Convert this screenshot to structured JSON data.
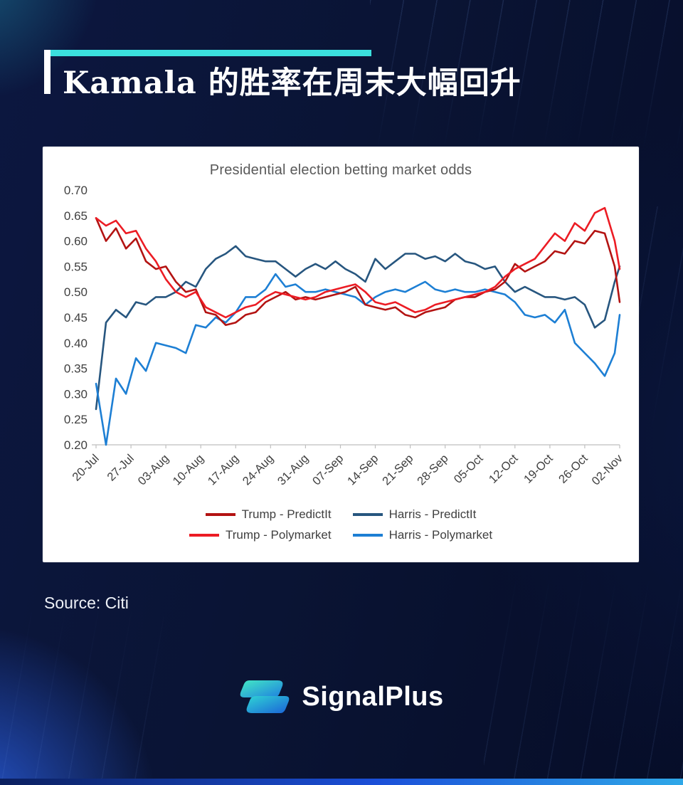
{
  "page": {
    "title": "Kamala 的胜率在周末大幅回升",
    "source": "Source: Citi",
    "brand": "SignalPlus",
    "accent_cyan": "#3BE0DE",
    "background_navy": "#0A1434"
  },
  "chart_data": {
    "type": "line",
    "title": "Presidential election betting market odds",
    "xlabel": "",
    "ylabel": "",
    "ylim": [
      0.2,
      0.7
    ],
    "xlim_days": [
      0,
      105
    ],
    "grid": false,
    "legend_position": "bottom",
    "y_ticks": [
      "0.70",
      "0.65",
      "0.60",
      "0.55",
      "0.50",
      "0.45",
      "0.40",
      "0.35",
      "0.30",
      "0.25",
      "0.20"
    ],
    "y_tick_values": [
      0.7,
      0.65,
      0.6,
      0.55,
      0.5,
      0.45,
      0.4,
      0.35,
      0.3,
      0.25,
      0.2
    ],
    "x_tick_days": [
      0,
      7,
      14,
      21,
      28,
      35,
      42,
      49,
      56,
      63,
      70,
      77,
      84,
      91,
      98,
      105
    ],
    "x_tick_labels": [
      "20-Jul",
      "27-Jul",
      "03-Aug",
      "10-Aug",
      "17-Aug",
      "24-Aug",
      "31-Aug",
      "07-Sep",
      "14-Sep",
      "21-Sep",
      "28-Sep",
      "05-Oct",
      "12-Oct",
      "19-Oct",
      "26-Oct",
      "02-Nov"
    ],
    "x_days": [
      0,
      2,
      4,
      6,
      8,
      10,
      12,
      14,
      16,
      18,
      20,
      22,
      24,
      26,
      28,
      30,
      32,
      34,
      36,
      38,
      40,
      42,
      44,
      46,
      48,
      50,
      52,
      54,
      56,
      58,
      60,
      62,
      64,
      66,
      68,
      70,
      72,
      74,
      76,
      78,
      80,
      82,
      84,
      86,
      88,
      90,
      92,
      94,
      96,
      98,
      100,
      102,
      104,
      105
    ],
    "draw_order": [
      1,
      3,
      0,
      2
    ],
    "legend_rows": [
      [
        0,
        1
      ],
      [
        2,
        3
      ]
    ],
    "series": [
      {
        "name": "Trump - PredictIt",
        "color": "#B31312",
        "values": [
          0.645,
          0.6,
          0.625,
          0.585,
          0.605,
          0.56,
          0.545,
          0.55,
          0.52,
          0.5,
          0.505,
          0.46,
          0.455,
          0.435,
          0.44,
          0.455,
          0.46,
          0.48,
          0.49,
          0.5,
          0.485,
          0.49,
          0.485,
          0.49,
          0.495,
          0.5,
          0.51,
          0.475,
          0.47,
          0.465,
          0.47,
          0.455,
          0.45,
          0.46,
          0.465,
          0.47,
          0.485,
          0.49,
          0.49,
          0.5,
          0.505,
          0.52,
          0.555,
          0.54,
          0.55,
          0.56,
          0.58,
          0.575,
          0.6,
          0.595,
          0.62,
          0.615,
          0.55,
          0.48
        ]
      },
      {
        "name": "Harris - PredictIt",
        "color": "#27567F",
        "values": [
          0.27,
          0.44,
          0.465,
          0.45,
          0.48,
          0.475,
          0.49,
          0.49,
          0.5,
          0.52,
          0.51,
          0.545,
          0.565,
          0.575,
          0.59,
          0.57,
          0.565,
          0.56,
          0.56,
          0.545,
          0.53,
          0.545,
          0.555,
          0.545,
          0.56,
          0.545,
          0.535,
          0.52,
          0.565,
          0.545,
          0.56,
          0.575,
          0.575,
          0.565,
          0.57,
          0.56,
          0.575,
          0.56,
          0.555,
          0.545,
          0.55,
          0.52,
          0.5,
          0.51,
          0.5,
          0.49,
          0.49,
          0.485,
          0.49,
          0.475,
          0.43,
          0.445,
          0.52,
          0.55
        ]
      },
      {
        "name": "Trump - Polymarket",
        "color": "#EC1C24",
        "values": [
          0.645,
          0.63,
          0.64,
          0.615,
          0.62,
          0.585,
          0.56,
          0.525,
          0.5,
          0.49,
          0.5,
          0.47,
          0.46,
          0.45,
          0.46,
          0.47,
          0.475,
          0.49,
          0.5,
          0.495,
          0.49,
          0.485,
          0.49,
          0.5,
          0.505,
          0.51,
          0.515,
          0.5,
          0.48,
          0.475,
          0.48,
          0.47,
          0.46,
          0.465,
          0.475,
          0.48,
          0.485,
          0.49,
          0.495,
          0.5,
          0.51,
          0.53,
          0.545,
          0.555,
          0.565,
          0.59,
          0.615,
          0.6,
          0.635,
          0.62,
          0.655,
          0.665,
          0.6,
          0.545
        ]
      },
      {
        "name": "Harris - Polymarket",
        "color": "#1D7FD4",
        "values": [
          0.32,
          0.2,
          0.33,
          0.3,
          0.37,
          0.345,
          0.4,
          0.395,
          0.39,
          0.38,
          0.435,
          0.43,
          0.45,
          0.44,
          0.46,
          0.49,
          0.49,
          0.505,
          0.535,
          0.51,
          0.515,
          0.5,
          0.5,
          0.505,
          0.5,
          0.495,
          0.49,
          0.475,
          0.49,
          0.5,
          0.505,
          0.5,
          0.51,
          0.52,
          0.505,
          0.5,
          0.505,
          0.5,
          0.5,
          0.505,
          0.5,
          0.495,
          0.48,
          0.455,
          0.45,
          0.455,
          0.44,
          0.465,
          0.4,
          0.38,
          0.36,
          0.335,
          0.38,
          0.455
        ]
      }
    ]
  }
}
